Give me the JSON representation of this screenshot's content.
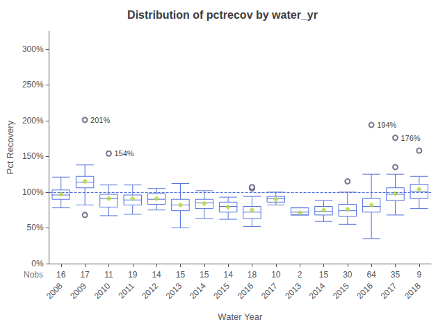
{
  "chart_data": {
    "type": "boxplot",
    "title": "Distribution of pctrecov by water_yr",
    "xlabel": "Water Year",
    "ylabel": "Pct Recovery",
    "categories": [
      "2008",
      "2009",
      "2010",
      "2011",
      "2012",
      "2013",
      "2014",
      "2015",
      "2016",
      "2017",
      "2013",
      "2014",
      "2015",
      "2016",
      "2017",
      "2018"
    ],
    "boxes": [
      {
        "q1": 90,
        "median": 96,
        "q3": 103,
        "mean": 97,
        "whislo": 78,
        "whishi": 121,
        "fliers": []
      },
      {
        "q1": 106,
        "median": 114,
        "q3": 122,
        "mean": 115,
        "whislo": 82,
        "whishi": 138,
        "fliers": [
          68,
          201
        ]
      },
      {
        "q1": 79,
        "median": 91,
        "q3": 97,
        "mean": 91,
        "whislo": 67,
        "whishi": 110,
        "fliers": [
          154
        ]
      },
      {
        "q1": 82,
        "median": 89,
        "q3": 96,
        "mean": 91,
        "whislo": 69,
        "whishi": 110,
        "fliers": []
      },
      {
        "q1": 83,
        "median": 90,
        "q3": 98,
        "mean": 91,
        "whislo": 75,
        "whishi": 105,
        "fliers": []
      },
      {
        "q1": 74,
        "median": 82,
        "q3": 90,
        "mean": 82,
        "whislo": 50,
        "whishi": 112,
        "fliers": []
      },
      {
        "q1": 77,
        "median": 85,
        "q3": 90,
        "mean": 84,
        "whislo": 63,
        "whishi": 102,
        "fliers": []
      },
      {
        "q1": 72,
        "median": 80,
        "q3": 86,
        "mean": 79,
        "whislo": 62,
        "whishi": 93,
        "fliers": []
      },
      {
        "q1": 63,
        "median": 72,
        "q3": 80,
        "mean": 75,
        "whislo": 52,
        "whishi": 94,
        "fliers": [
          105,
          107
        ]
      },
      {
        "q1": 86,
        "median": 91,
        "q3": 94,
        "mean": 90,
        "whislo": 82,
        "whishi": 100,
        "fliers": []
      },
      {
        "q1": 68,
        "median": 72,
        "q3": 78,
        "mean": 71,
        "whislo": 68,
        "whishi": 78,
        "fliers": []
      },
      {
        "q1": 68,
        "median": 73,
        "q3": 80,
        "mean": 75,
        "whislo": 59,
        "whishi": 88,
        "fliers": []
      },
      {
        "q1": 66,
        "median": 74,
        "q3": 83,
        "mean": 76,
        "whislo": 55,
        "whishi": 100,
        "fliers": [
          115
        ]
      },
      {
        "q1": 72,
        "median": 80,
        "q3": 91,
        "mean": 82,
        "whislo": 35,
        "whishi": 125,
        "fliers": [
          194
        ]
      },
      {
        "q1": 88,
        "median": 97,
        "q3": 106,
        "mean": 98,
        "whislo": 68,
        "whishi": 125,
        "fliers": [
          135,
          176
        ]
      },
      {
        "q1": 91,
        "median": 101,
        "q3": 111,
        "mean": 104,
        "whislo": 77,
        "whishi": 122,
        "fliers": [
          158
        ]
      }
    ],
    "nobs_label": "Nobs",
    "nobs": [
      16,
      17,
      11,
      19,
      14,
      15,
      15,
      14,
      18,
      10,
      2,
      15,
      30,
      64,
      35,
      9
    ],
    "reference_line": 100,
    "annotations": [
      {
        "category_index": 1,
        "value": 201,
        "text": "201%"
      },
      {
        "category_index": 2,
        "value": 154,
        "text": "154%"
      },
      {
        "category_index": 13,
        "value": 194,
        "text": "194%"
      },
      {
        "category_index": 14,
        "value": 176,
        "text": "176%"
      }
    ],
    "ylim": [
      0,
      325
    ],
    "yticks": [
      {
        "value": 0,
        "label": "0%"
      },
      {
        "value": 50,
        "label": "50%"
      },
      {
        "value": 100,
        "label": "100%"
      },
      {
        "value": 150,
        "label": "150%"
      },
      {
        "value": 200,
        "label": "200%"
      },
      {
        "value": 250,
        "label": "250%"
      },
      {
        "value": 300,
        "label": "300%"
      }
    ],
    "grid": false
  }
}
